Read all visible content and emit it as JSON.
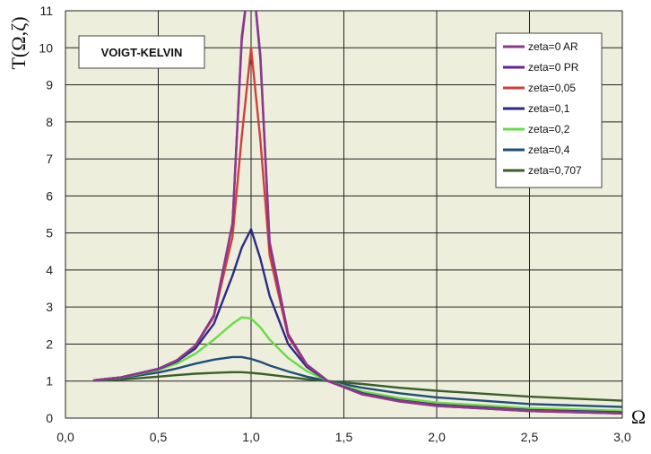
{
  "chart_data": {
    "type": "line",
    "annotation": "VOIGT-KELVIN",
    "ylabel": "T(Ω,ζ)",
    "xlabel": "Ω",
    "xlim": [
      0,
      3
    ],
    "ylim": [
      0,
      11
    ],
    "x_ticks": [
      0,
      0.5,
      1,
      1.5,
      2,
      2.5,
      3
    ],
    "x_tick_labels": [
      "0,0",
      "0,5",
      "1,0",
      "1,5",
      "2,0",
      "2,5",
      "3,0"
    ],
    "y_ticks": [
      0,
      1,
      2,
      3,
      4,
      5,
      6,
      7,
      8,
      9,
      10,
      11
    ],
    "y_tick_labels": [
      "0",
      "1",
      "2",
      "3",
      "4",
      "5",
      "6",
      "7",
      "8",
      "9",
      "10",
      "11"
    ],
    "grid": true,
    "legend_position": "top-right",
    "x": [
      0.15,
      0.3,
      0.5,
      0.6,
      0.7,
      0.8,
      0.9,
      0.95,
      1.0,
      1.05,
      1.1,
      1.2,
      1.3,
      1.414,
      1.6,
      1.8,
      2.0,
      2.5,
      3.0
    ],
    "series": [
      {
        "name": "zeta=0 AR",
        "color": "#8b3a8b",
        "values": [
          1.02,
          1.1,
          1.33,
          1.56,
          1.96,
          2.78,
          5.26,
          10.3,
          null,
          9.8,
          4.76,
          2.27,
          1.45,
          1.0,
          0.64,
          0.45,
          0.33,
          0.19,
          0.125
        ]
      },
      {
        "name": "zeta=0 PR",
        "color": "#6a1f9e",
        "values": [
          1.02,
          1.1,
          1.33,
          1.56,
          1.96,
          2.78,
          5.26,
          10.2,
          null,
          9.7,
          4.7,
          2.25,
          1.44,
          1.0,
          0.64,
          0.45,
          0.33,
          0.19,
          0.125
        ]
      },
      {
        "name": "zeta=0,05",
        "color": "#d0403a",
        "values": [
          1.02,
          1.1,
          1.33,
          1.56,
          1.95,
          2.74,
          4.9,
          7.6,
          10.0,
          7.5,
          4.4,
          2.2,
          1.43,
          1.0,
          0.65,
          0.46,
          0.34,
          0.2,
          0.135
        ]
      },
      {
        "name": "zeta=0,1",
        "color": "#2a2a8a",
        "values": [
          1.02,
          1.1,
          1.32,
          1.53,
          1.88,
          2.55,
          3.85,
          4.6,
          5.1,
          4.3,
          3.3,
          2.0,
          1.38,
          1.0,
          0.67,
          0.48,
          0.36,
          0.22,
          0.155
        ]
      },
      {
        "name": "zeta=0,2",
        "color": "#66dd44",
        "values": [
          1.02,
          1.09,
          1.3,
          1.47,
          1.74,
          2.12,
          2.55,
          2.72,
          2.69,
          2.45,
          2.12,
          1.62,
          1.27,
          1.0,
          0.72,
          0.54,
          0.42,
          0.27,
          0.2
        ]
      },
      {
        "name": "zeta=0,4",
        "color": "#1f4e79",
        "values": [
          1.02,
          1.08,
          1.23,
          1.34,
          1.47,
          1.58,
          1.65,
          1.65,
          1.6,
          1.52,
          1.42,
          1.26,
          1.12,
          1.0,
          0.82,
          0.67,
          0.56,
          0.38,
          0.3
        ]
      },
      {
        "name": "zeta=0,707",
        "color": "#3b5f2a",
        "values": [
          1.01,
          1.04,
          1.12,
          1.16,
          1.2,
          1.22,
          1.24,
          1.24,
          1.22,
          1.2,
          1.17,
          1.11,
          1.05,
          1.0,
          0.92,
          0.82,
          0.74,
          0.58,
          0.47
        ]
      }
    ]
  }
}
